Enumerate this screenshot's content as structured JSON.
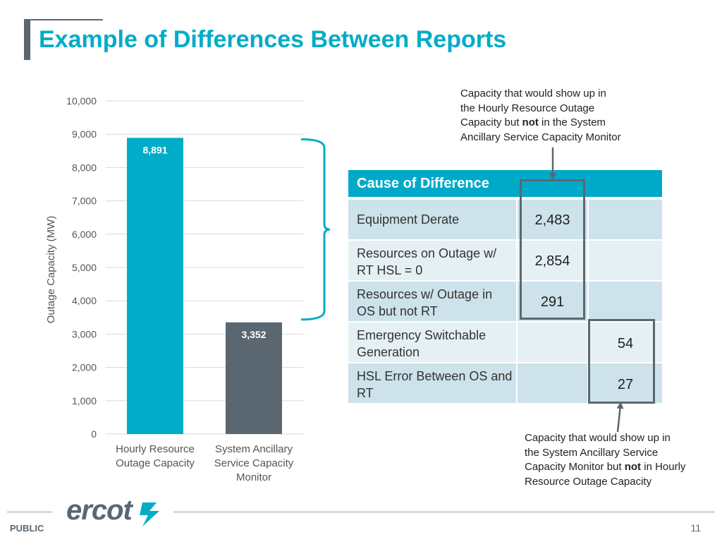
{
  "slide": {
    "title": "Example of Differences Between Reports",
    "footer_label": "PUBLIC",
    "page_number": "11",
    "logo_text": "ercot"
  },
  "chart_data": {
    "type": "bar",
    "categories": [
      "Hourly Resource Outage Capacity",
      "System Ancillary Service Capacity Monitor"
    ],
    "category_lines": [
      [
        "Hourly Resource",
        "Outage Capacity"
      ],
      [
        "System Ancillary",
        "Service Capacity",
        "Monitor"
      ]
    ],
    "values": [
      8891,
      3352
    ],
    "value_labels": [
      "8,891",
      "3,352"
    ],
    "bar_colors": [
      "#00acc8",
      "#5b6770"
    ],
    "ylabel": "Outage Capacity (MW)",
    "ylim": [
      0,
      10000
    ],
    "yticks": [
      0,
      1000,
      2000,
      3000,
      4000,
      5000,
      6000,
      7000,
      8000,
      9000,
      10000
    ],
    "ytick_labels": [
      "0",
      "1,000",
      "2,000",
      "3,000",
      "4,000",
      "5,000",
      "6,000",
      "7,000",
      "8,000",
      "9,000",
      "10,000"
    ],
    "grid": true,
    "brace_range": [
      3352,
      8891
    ]
  },
  "callouts": {
    "top": {
      "line1": "Capacity that would show up in",
      "line2": "the Hourly Resource Outage",
      "line3_pre": "Capacity but ",
      "line3_bold": "not",
      "line3_post": " in the System",
      "line4": "Ancillary Service Capacity Monitor"
    },
    "bottom": {
      "line1": "Capacity that would show up in",
      "line2": "the System Ancillary Service",
      "line3_pre": "Capacity Monitor but ",
      "line3_bold": "not",
      "line3_post": " in Hourly",
      "line4": "Resource Outage Capacity"
    }
  },
  "table": {
    "header": "Cause of Difference",
    "rows": [
      {
        "label": "Equipment Derate",
        "hourly_only": "2,483",
        "ascm_only": ""
      },
      {
        "label": "Resources on Outage w/ RT HSL = 0",
        "hourly_only": "2,854",
        "ascm_only": ""
      },
      {
        "label": "Resources w/ Outage in OS but not RT",
        "hourly_only": "291",
        "ascm_only": ""
      },
      {
        "label": "Emergency Switchable Generation",
        "hourly_only": "",
        "ascm_only": "54"
      },
      {
        "label": "HSL Error Between OS and RT",
        "hourly_only": "",
        "ascm_only": "27"
      }
    ]
  },
  "colors": {
    "accent": "#00acc8",
    "table_header": "#00a9c8",
    "dark_gray": "#5b6770"
  }
}
